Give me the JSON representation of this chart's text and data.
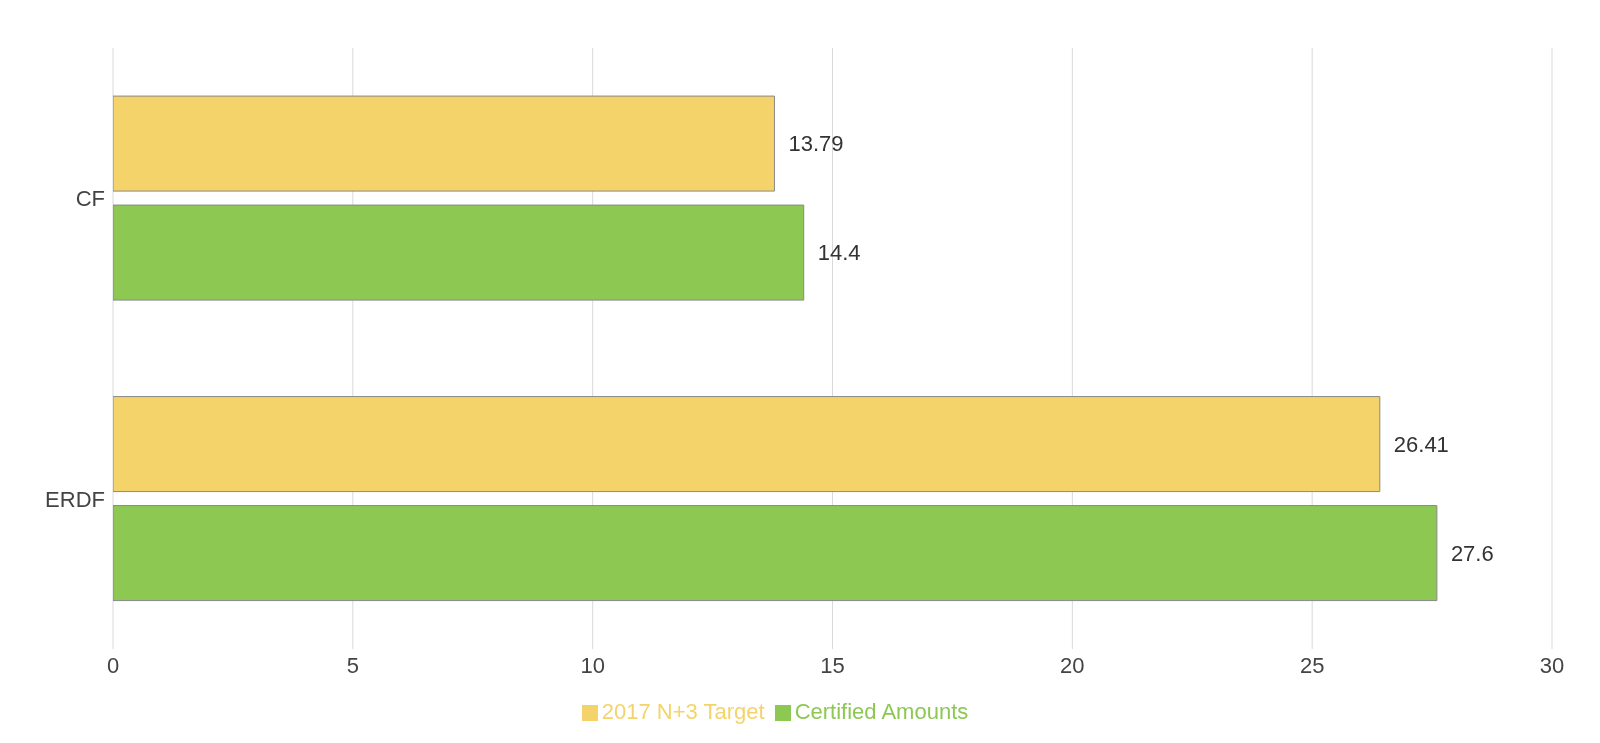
{
  "chart_data": {
    "type": "bar",
    "orientation": "horizontal",
    "categories": [
      "CF",
      "ERDF"
    ],
    "series": [
      {
        "name": "2017 N+3 Target",
        "color": "#f4d46a",
        "values": [
          13.79,
          26.41
        ]
      },
      {
        "name": "Certified Amounts",
        "color": "#8cc852",
        "values": [
          14.4,
          27.6
        ]
      }
    ],
    "xlim": [
      0,
      30
    ],
    "xticks": [
      0,
      5,
      10,
      15,
      20,
      25,
      30
    ],
    "grid": "x",
    "legend": "bottom",
    "data_labels": true
  }
}
